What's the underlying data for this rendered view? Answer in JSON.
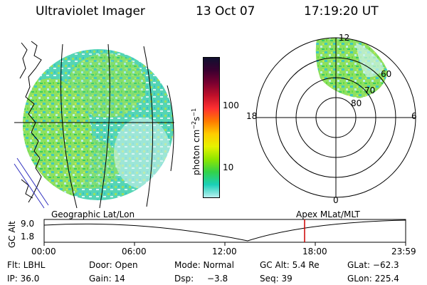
{
  "header": {
    "title": "Ultraviolet Imager",
    "date": "13 Oct 07",
    "time": "17:19:20 UT"
  },
  "colorbar": {
    "label_main": "photon cm",
    "label_exp1": "−2",
    "label_mid": "s",
    "label_exp2": "−1",
    "ticks": [
      "100",
      "10"
    ],
    "colors": [
      "#101030",
      "#3a0030",
      "#7a0030",
      "#c0102a",
      "#ff3030",
      "#ff7a00",
      "#ffcc00",
      "#e6f200",
      "#8fe600",
      "#33d24a",
      "#1ad0b8",
      "#b8f0f0"
    ]
  },
  "polar_plot": {
    "labels": {
      "top": "12",
      "bottom": "0",
      "left": "18",
      "right": "6"
    },
    "rings": [
      "80",
      "70",
      "60"
    ]
  },
  "timeline": {
    "left_label": "Geographic Lat/Lon",
    "right_label": "Apex MLat/MLT",
    "y_axis_label": "GC Alt",
    "y_ticks": [
      "9.0",
      "1.8"
    ],
    "x_ticks": [
      "00:00",
      "06:00",
      "12:00",
      "18:00",
      "23:59"
    ],
    "marker_color": "#cc0000"
  },
  "info": {
    "flt": "Flt: LBHL",
    "door": "Door: Open",
    "mode": "Mode: Normal",
    "gc_alt": "GC Alt: 5.4 Re",
    "glat": "GLat: −62.3",
    "ip": "IP: 36.0",
    "gain": "Gain: 14",
    "dsp_label": "Dsp:",
    "dsp_value": "−3.8",
    "seq": "Seq: 39",
    "glon": "GLon: 225.4"
  }
}
